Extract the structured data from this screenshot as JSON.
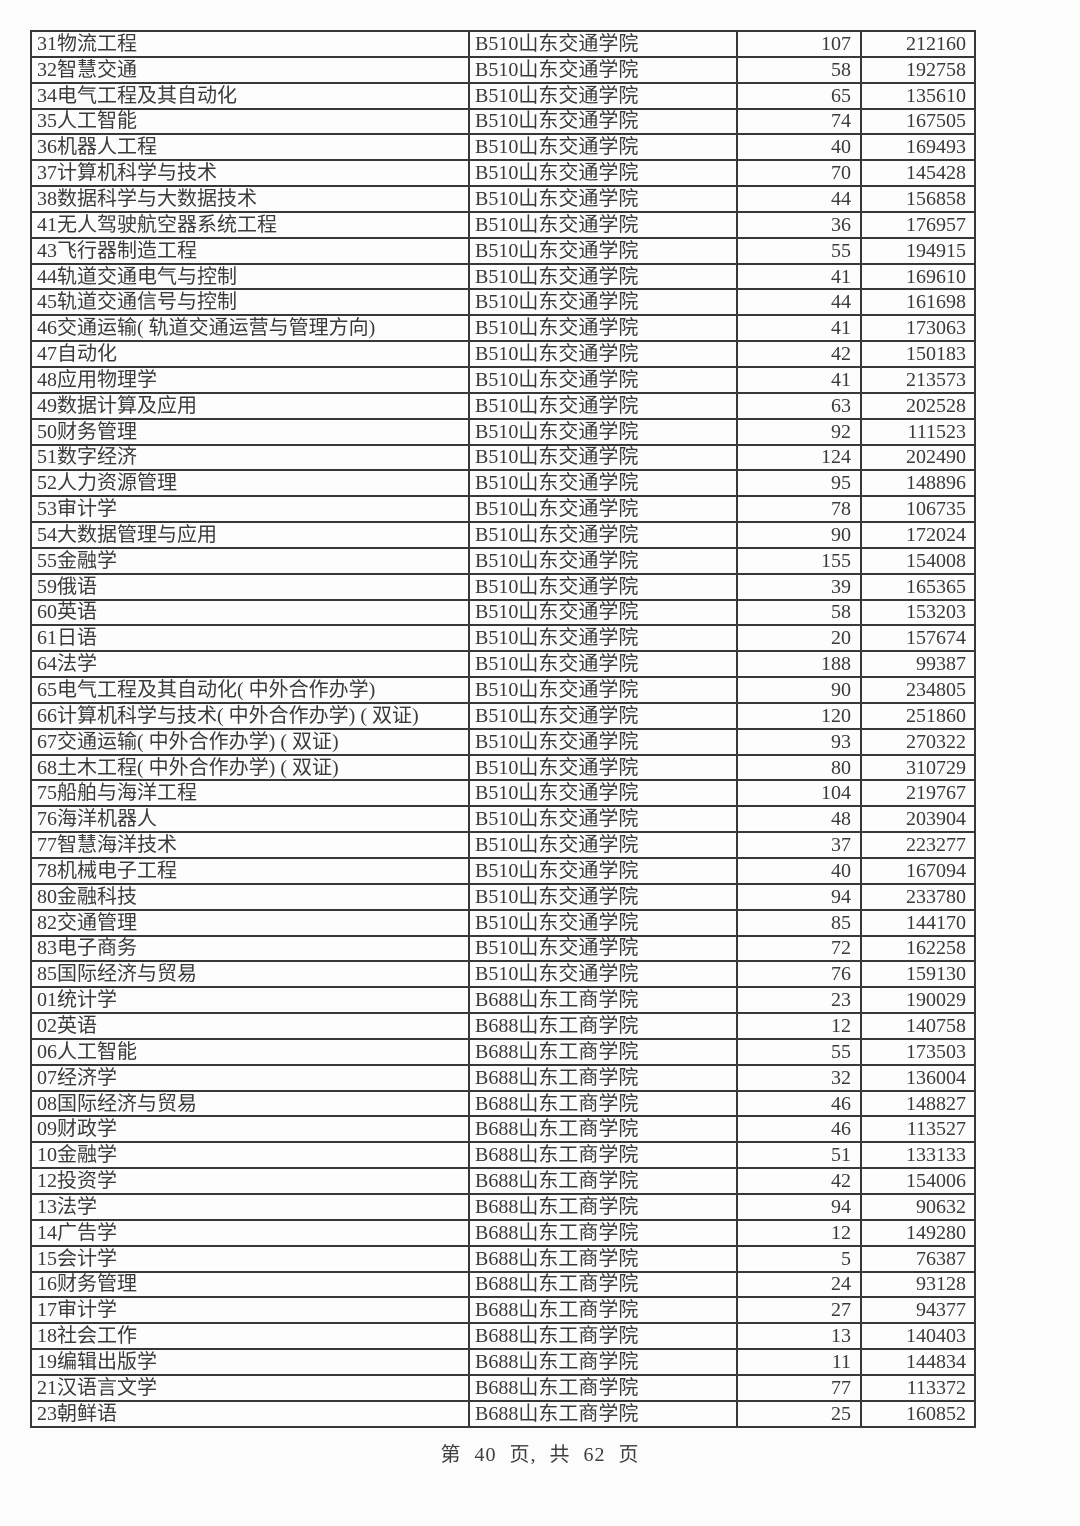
{
  "table": {
    "column_keys": [
      "major",
      "school",
      "count",
      "rank"
    ],
    "rows": [
      {
        "major": "31物流工程",
        "school": "B510山东交通学院",
        "count": "107",
        "rank": "212160"
      },
      {
        "major": "32智慧交通",
        "school": "B510山东交通学院",
        "count": "58",
        "rank": "192758"
      },
      {
        "major": "34电气工程及其自动化",
        "school": "B510山东交通学院",
        "count": "65",
        "rank": "135610"
      },
      {
        "major": "35人工智能",
        "school": "B510山东交通学院",
        "count": "74",
        "rank": "167505"
      },
      {
        "major": "36机器人工程",
        "school": "B510山东交通学院",
        "count": "40",
        "rank": "169493"
      },
      {
        "major": "37计算机科学与技术",
        "school": "B510山东交通学院",
        "count": "70",
        "rank": "145428"
      },
      {
        "major": "38数据科学与大数据技术",
        "school": "B510山东交通学院",
        "count": "44",
        "rank": "156858"
      },
      {
        "major": "41无人驾驶航空器系统工程",
        "school": "B510山东交通学院",
        "count": "36",
        "rank": "176957"
      },
      {
        "major": "43飞行器制造工程",
        "school": "B510山东交通学院",
        "count": "55",
        "rank": "194915"
      },
      {
        "major": "44轨道交通电气与控制",
        "school": "B510山东交通学院",
        "count": "41",
        "rank": "169610"
      },
      {
        "major": "45轨道交通信号与控制",
        "school": "B510山东交通学院",
        "count": "44",
        "rank": "161698"
      },
      {
        "major": "46交通运输( 轨道交通运营与管理方向)",
        "school": "B510山东交通学院",
        "count": "41",
        "rank": "173063"
      },
      {
        "major": "47自动化",
        "school": "B510山东交通学院",
        "count": "42",
        "rank": "150183"
      },
      {
        "major": "48应用物理学",
        "school": "B510山东交通学院",
        "count": "41",
        "rank": "213573"
      },
      {
        "major": "49数据计算及应用",
        "school": "B510山东交通学院",
        "count": "63",
        "rank": "202528"
      },
      {
        "major": "50财务管理",
        "school": "B510山东交通学院",
        "count": "92",
        "rank": "111523"
      },
      {
        "major": "51数字经济",
        "school": "B510山东交通学院",
        "count": "124",
        "rank": "202490"
      },
      {
        "major": "52人力资源管理",
        "school": "B510山东交通学院",
        "count": "95",
        "rank": "148896"
      },
      {
        "major": "53审计学",
        "school": "B510山东交通学院",
        "count": "78",
        "rank": "106735"
      },
      {
        "major": "54大数据管理与应用",
        "school": "B510山东交通学院",
        "count": "90",
        "rank": "172024"
      },
      {
        "major": "55金融学",
        "school": "B510山东交通学院",
        "count": "155",
        "rank": "154008"
      },
      {
        "major": "59俄语",
        "school": "B510山东交通学院",
        "count": "39",
        "rank": "165365"
      },
      {
        "major": "60英语",
        "school": "B510山东交通学院",
        "count": "58",
        "rank": "153203"
      },
      {
        "major": "61日语",
        "school": "B510山东交通学院",
        "count": "20",
        "rank": "157674"
      },
      {
        "major": "64法学",
        "school": "B510山东交通学院",
        "count": "188",
        "rank": "99387"
      },
      {
        "major": "65电气工程及其自动化( 中外合作办学)",
        "school": "B510山东交通学院",
        "count": "90",
        "rank": "234805"
      },
      {
        "major": "66计算机科学与技术( 中外合作办学) ( 双证)",
        "school": "B510山东交通学院",
        "count": "120",
        "rank": "251860"
      },
      {
        "major": "67交通运输( 中外合作办学) ( 双证)",
        "school": "B510山东交通学院",
        "count": "93",
        "rank": "270322"
      },
      {
        "major": "68土木工程( 中外合作办学) ( 双证)",
        "school": "B510山东交通学院",
        "count": "80",
        "rank": "310729"
      },
      {
        "major": "75船舶与海洋工程",
        "school": "B510山东交通学院",
        "count": "104",
        "rank": "219767"
      },
      {
        "major": "76海洋机器人",
        "school": "B510山东交通学院",
        "count": "48",
        "rank": "203904"
      },
      {
        "major": "77智慧海洋技术",
        "school": "B510山东交通学院",
        "count": "37",
        "rank": "223277"
      },
      {
        "major": "78机械电子工程",
        "school": "B510山东交通学院",
        "count": "40",
        "rank": "167094"
      },
      {
        "major": "80金融科技",
        "school": "B510山东交通学院",
        "count": "94",
        "rank": "233780"
      },
      {
        "major": "82交通管理",
        "school": "B510山东交通学院",
        "count": "85",
        "rank": "144170"
      },
      {
        "major": "83电子商务",
        "school": "B510山东交通学院",
        "count": "72",
        "rank": "162258"
      },
      {
        "major": "85国际经济与贸易",
        "school": "B510山东交通学院",
        "count": "76",
        "rank": "159130"
      },
      {
        "major": "01统计学",
        "school": "B688山东工商学院",
        "count": "23",
        "rank": "190029"
      },
      {
        "major": "02英语",
        "school": "B688山东工商学院",
        "count": "12",
        "rank": "140758"
      },
      {
        "major": "06人工智能",
        "school": "B688山东工商学院",
        "count": "55",
        "rank": "173503"
      },
      {
        "major": "07经济学",
        "school": "B688山东工商学院",
        "count": "32",
        "rank": "136004"
      },
      {
        "major": "08国际经济与贸易",
        "school": "B688山东工商学院",
        "count": "46",
        "rank": "148827"
      },
      {
        "major": "09财政学",
        "school": "B688山东工商学院",
        "count": "46",
        "rank": "113527"
      },
      {
        "major": "10金融学",
        "school": "B688山东工商学院",
        "count": "51",
        "rank": "133133"
      },
      {
        "major": "12投资学",
        "school": "B688山东工商学院",
        "count": "42",
        "rank": "154006"
      },
      {
        "major": "13法学",
        "school": "B688山东工商学院",
        "count": "94",
        "rank": "90632"
      },
      {
        "major": "14广告学",
        "school": "B688山东工商学院",
        "count": "12",
        "rank": "149280"
      },
      {
        "major": "15会计学",
        "school": "B688山东工商学院",
        "count": "5",
        "rank": "76387"
      },
      {
        "major": "16财务管理",
        "school": "B688山东工商学院",
        "count": "24",
        "rank": "93128"
      },
      {
        "major": "17审计学",
        "school": "B688山东工商学院",
        "count": "27",
        "rank": "94377"
      },
      {
        "major": "18社会工作",
        "school": "B688山东工商学院",
        "count": "13",
        "rank": "140403"
      },
      {
        "major": "19编辑出版学",
        "school": "B688山东工商学院",
        "count": "11",
        "rank": "144834"
      },
      {
        "major": "21汉语言文学",
        "school": "B688山东工商学院",
        "count": "77",
        "rank": "113372"
      },
      {
        "major": "23朝鲜语",
        "school": "B688山东工商学院",
        "count": "25",
        "rank": "160852"
      }
    ]
  },
  "footer": {
    "text": "第 40 页, 共 62 页",
    "current_page": 40,
    "total_pages": 62
  },
  "colors": {
    "text": "#3a3a3a",
    "border": "#383838",
    "background": "#fcfcfc"
  }
}
